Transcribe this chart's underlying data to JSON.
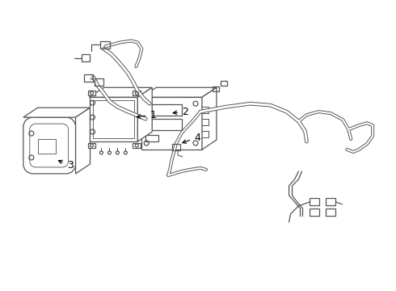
{
  "background_color": "#ffffff",
  "line_color": "#555555",
  "line_width": 0.9,
  "figsize": [
    4.9,
    3.6
  ],
  "dpi": 100
}
